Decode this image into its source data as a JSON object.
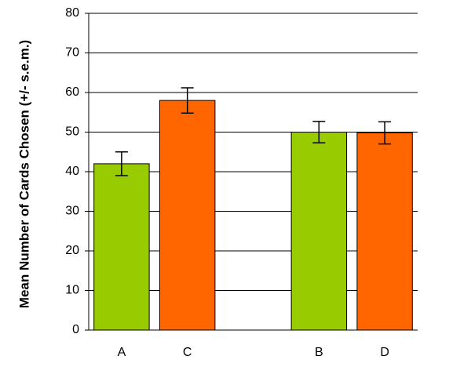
{
  "chart_data": {
    "type": "bar",
    "y_label": "Mean Number of Cards Chosen (+/- s.e.m.)",
    "categories": [
      "A",
      "C",
      null,
      "B",
      "D"
    ],
    "values": [
      42,
      58,
      null,
      50,
      49.8
    ],
    "errors": [
      3,
      3.2,
      null,
      2.7,
      2.8
    ],
    "colors": [
      "#99cc00",
      "#ff6600",
      null,
      "#99cc00",
      "#ff6600"
    ],
    "ylim": [
      0,
      80
    ],
    "yticks": [
      0,
      10,
      20,
      30,
      40,
      50,
      60,
      70,
      80
    ],
    "grid": true
  }
}
